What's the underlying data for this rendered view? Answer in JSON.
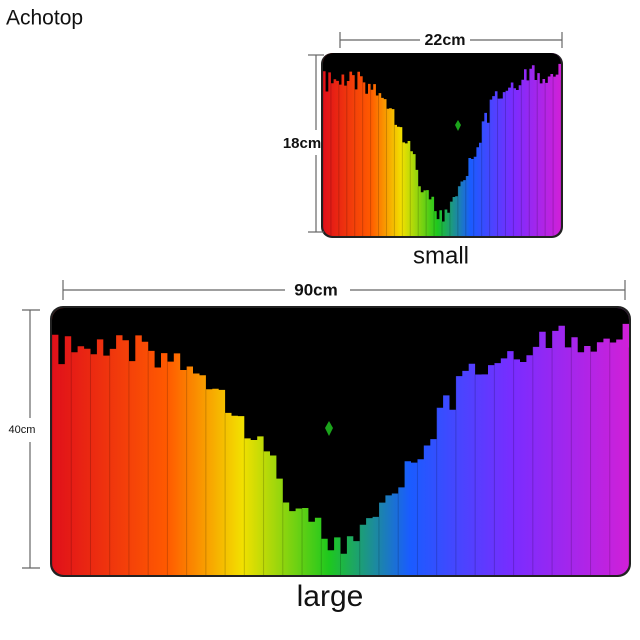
{
  "brand": "Achotop",
  "small": {
    "width_label": "22cm",
    "height_label": "18cm",
    "name": "small"
  },
  "large": {
    "width_label": "90cm",
    "height_label": "40cm",
    "name": "large"
  }
}
